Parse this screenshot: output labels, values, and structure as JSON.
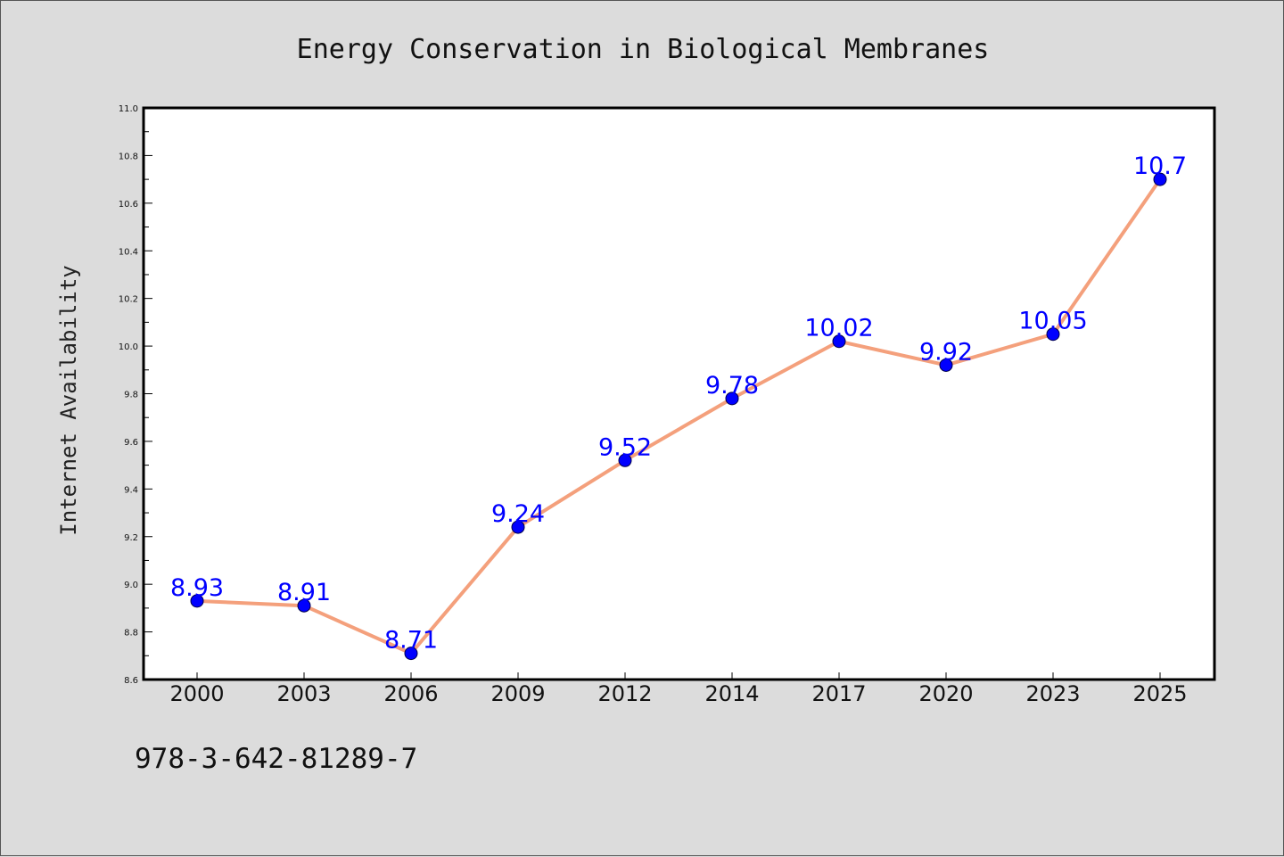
{
  "chart_data": {
    "type": "line",
    "title": "Energy Conservation in Biological Membranes",
    "xlabel": "",
    "ylabel": "Internet Availability",
    "categories": [
      "2000",
      "2003",
      "2006",
      "2009",
      "2012",
      "2014",
      "2017",
      "2020",
      "2023",
      "2025"
    ],
    "series": [
      {
        "values": [
          8.93,
          8.91,
          8.71,
          9.24,
          9.52,
          9.78,
          10.02,
          9.92,
          10.05,
          10.7
        ]
      }
    ],
    "data_labels": [
      "8.93",
      "8.91",
      "8.71",
      "9.24",
      "9.52",
      "9.78",
      "10.02",
      "9.92",
      "10.05",
      "10.7"
    ],
    "ylim": [
      8.6,
      11.0
    ],
    "yticks": [
      "8.6",
      "8.8",
      "9.0",
      "9.2",
      "9.4",
      "9.6",
      "9.8",
      "10.0",
      "10.2",
      "10.4",
      "10.6",
      "10.8",
      "11.0"
    ],
    "grid": false,
    "colors": {
      "line": "#f4a07c",
      "marker": "#0000ff",
      "label": "#0000ff",
      "background": "#dcdcdc",
      "plot_bg": "#ffffff"
    }
  },
  "footer": {
    "isbn": "978-3-642-81289-7"
  }
}
